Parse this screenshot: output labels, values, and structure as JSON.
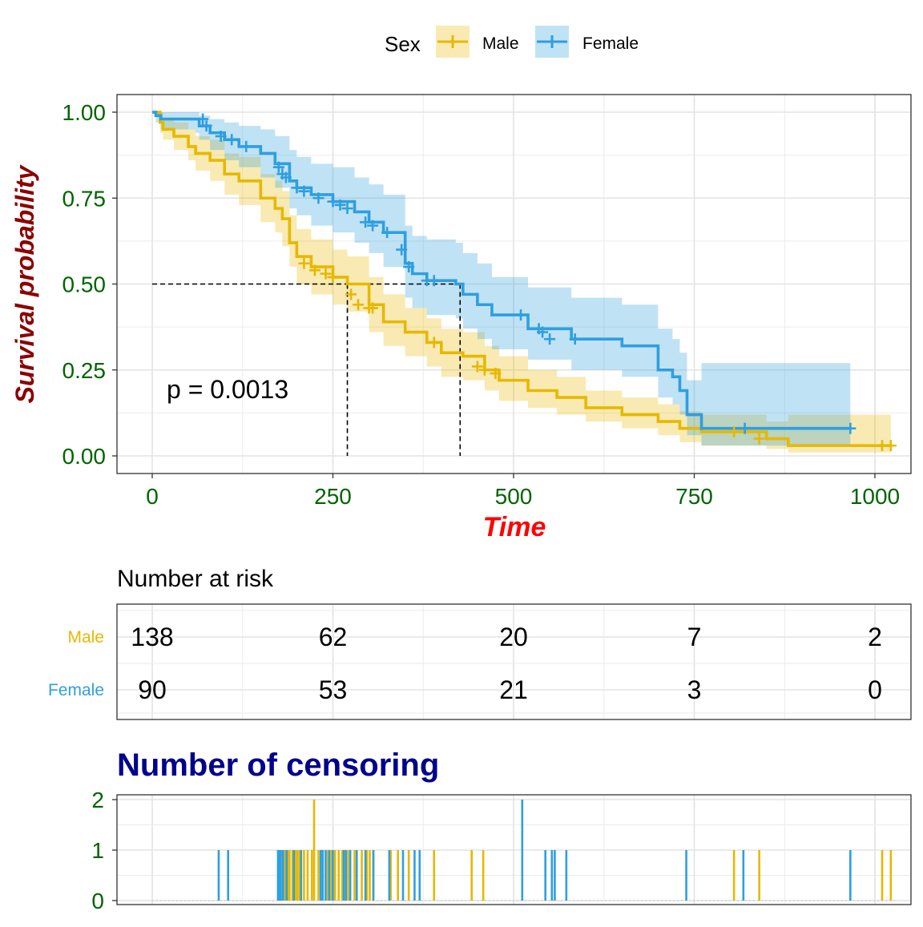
{
  "chart_data": [
    {
      "type": "line",
      "subtype": "kaplan-meier",
      "title": "",
      "xlabel": "Time",
      "ylabel": "Survival probability",
      "xlim": [
        0,
        1030
      ],
      "ylim": [
        0,
        1
      ],
      "x_ticks": [
        "0",
        "250",
        "500",
        "750",
        "1000"
      ],
      "y_ticks": [
        "0.00",
        "0.25",
        "0.50",
        "0.75",
        "1.00"
      ],
      "grid": true,
      "legend": {
        "title": "Sex",
        "position": "top",
        "entries": [
          "Male",
          "Female"
        ]
      },
      "annotation": "p = 0.0013",
      "median_survival": [
        {
          "series": "Male",
          "x": 270,
          "y": 0.5
        },
        {
          "series": "Female",
          "x": 426,
          "y": 0.5
        }
      ],
      "series": [
        {
          "name": "Male",
          "color": "#E7B800",
          "x": [
            0,
            11,
            15,
            30,
            50,
            60,
            80,
            100,
            120,
            150,
            170,
            180,
            190,
            200,
            220,
            250,
            270,
            300,
            320,
            350,
            380,
            400,
            430,
            460,
            480,
            520,
            560,
            600,
            650,
            700,
            730,
            760,
            800,
            850,
            880,
            1022
          ],
          "y": [
            1.0,
            0.97,
            0.95,
            0.93,
            0.9,
            0.88,
            0.86,
            0.82,
            0.8,
            0.75,
            0.72,
            0.69,
            0.62,
            0.58,
            0.55,
            0.52,
            0.5,
            0.44,
            0.39,
            0.36,
            0.33,
            0.3,
            0.29,
            0.25,
            0.22,
            0.19,
            0.17,
            0.14,
            0.12,
            0.1,
            0.08,
            0.07,
            0.07,
            0.05,
            0.03,
            0.03
          ],
          "lower": [
            1.0,
            0.94,
            0.92,
            0.89,
            0.86,
            0.83,
            0.8,
            0.76,
            0.73,
            0.68,
            0.65,
            0.61,
            0.55,
            0.5,
            0.47,
            0.44,
            0.42,
            0.36,
            0.32,
            0.29,
            0.26,
            0.23,
            0.22,
            0.19,
            0.16,
            0.14,
            0.12,
            0.1,
            0.08,
            0.06,
            0.04,
            0.03,
            0.03,
            0.02,
            0.01,
            0.01
          ],
          "upper": [
            1.0,
            1.0,
            0.98,
            0.97,
            0.95,
            0.93,
            0.92,
            0.88,
            0.87,
            0.82,
            0.8,
            0.77,
            0.7,
            0.66,
            0.63,
            0.6,
            0.58,
            0.52,
            0.47,
            0.43,
            0.4,
            0.37,
            0.36,
            0.32,
            0.29,
            0.25,
            0.23,
            0.19,
            0.17,
            0.15,
            0.13,
            0.12,
            0.12,
            0.1,
            0.12,
            0.12
          ],
          "censor_x": [
            210,
            225,
            240,
            250,
            275,
            285,
            300,
            305,
            390,
            450,
            460,
            475,
            805,
            840,
            1010,
            1022
          ],
          "censor_y": [
            0.56,
            0.54,
            0.53,
            0.52,
            0.47,
            0.44,
            0.43,
            0.43,
            0.33,
            0.26,
            0.25,
            0.24,
            0.07,
            0.05,
            0.03,
            0.03
          ]
        },
        {
          "name": "Female",
          "color": "#2E9FDF",
          "x": [
            0,
            5,
            12,
            60,
            65,
            80,
            100,
            120,
            150,
            170,
            190,
            200,
            220,
            250,
            280,
            300,
            320,
            350,
            360,
            380,
            420,
            430,
            450,
            470,
            520,
            580,
            620,
            650,
            700,
            720,
            730,
            740,
            760,
            966
          ],
          "y": [
            1.0,
            0.99,
            0.98,
            0.98,
            0.96,
            0.94,
            0.92,
            0.9,
            0.88,
            0.85,
            0.8,
            0.78,
            0.76,
            0.74,
            0.71,
            0.68,
            0.65,
            0.56,
            0.53,
            0.51,
            0.5,
            0.47,
            0.44,
            0.41,
            0.37,
            0.34,
            0.34,
            0.32,
            0.25,
            0.23,
            0.19,
            0.12,
            0.08,
            0.08
          ],
          "lower": [
            1.0,
            0.97,
            0.95,
            0.94,
            0.92,
            0.89,
            0.86,
            0.84,
            0.81,
            0.78,
            0.72,
            0.7,
            0.67,
            0.65,
            0.62,
            0.59,
            0.55,
            0.46,
            0.43,
            0.41,
            0.4,
            0.37,
            0.34,
            0.31,
            0.28,
            0.25,
            0.25,
            0.23,
            0.17,
            0.15,
            0.12,
            0.06,
            0.03,
            0.03
          ],
          "upper": [
            1.0,
            1.0,
            1.0,
            1.0,
            0.99,
            0.98,
            0.97,
            0.96,
            0.95,
            0.93,
            0.89,
            0.87,
            0.85,
            0.84,
            0.81,
            0.79,
            0.76,
            0.67,
            0.64,
            0.63,
            0.62,
            0.59,
            0.56,
            0.52,
            0.49,
            0.46,
            0.46,
            0.44,
            0.37,
            0.34,
            0.3,
            0.22,
            0.27,
            0.27
          ],
          "censor_x": [
            70,
            75,
            95,
            110,
            130,
            175,
            180,
            185,
            200,
            210,
            230,
            250,
            260,
            270,
            295,
            305,
            325,
            345,
            355,
            380,
            390,
            510,
            535,
            540,
            550,
            585,
            820,
            966
          ],
          "censor_y": [
            0.98,
            0.96,
            0.93,
            0.92,
            0.9,
            0.84,
            0.82,
            0.81,
            0.78,
            0.77,
            0.75,
            0.74,
            0.73,
            0.72,
            0.68,
            0.67,
            0.65,
            0.6,
            0.55,
            0.51,
            0.51,
            0.41,
            0.37,
            0.36,
            0.34,
            0.34,
            0.08,
            0.08
          ]
        }
      ]
    },
    {
      "type": "table",
      "title": "Number at risk",
      "x_ticks": [
        0,
        250,
        500,
        750,
        1000
      ],
      "rows": [
        {
          "name": "Male",
          "color": "#E7B800",
          "values": [
            138,
            62,
            20,
            7,
            2
          ]
        },
        {
          "name": "Female",
          "color": "#2E9FDF",
          "values": [
            90,
            53,
            21,
            3,
            0
          ]
        }
      ]
    },
    {
      "type": "bar",
      "title": "Number of censoring",
      "ylim": [
        0,
        2
      ],
      "y_ticks": [
        "0",
        "1",
        "2"
      ],
      "series": [
        {
          "name": "Male",
          "color": "#E7B800",
          "x": [
            183,
            185,
            188,
            190,
            194,
            198,
            201,
            204,
            210,
            215,
            221,
            224,
            230,
            243,
            248,
            253,
            258,
            263,
            268,
            271,
            280,
            290,
            297,
            301,
            306,
            330,
            340,
            355,
            390,
            442,
            458,
            805,
            840,
            1010,
            1022
          ],
          "values": [
            1,
            1,
            1,
            1,
            1,
            1,
            1,
            1,
            1,
            1,
            1,
            2,
            1,
            1,
            1,
            1,
            1,
            1,
            1,
            1,
            1,
            1,
            1,
            1,
            1,
            1,
            1,
            1,
            1,
            1,
            1,
            1,
            1,
            1,
            1
          ]
        },
        {
          "name": "Female",
          "color": "#2E9FDF",
          "x": [
            92,
            105,
            174,
            176,
            178,
            181,
            186,
            196,
            206,
            233,
            236,
            240,
            245,
            250,
            265,
            268,
            274,
            283,
            295,
            306,
            328,
            347,
            363,
            370,
            512,
            544,
            553,
            557,
            573,
            739,
            818,
            966
          ],
          "values": [
            1,
            1,
            1,
            1,
            1,
            1,
            1,
            1,
            1,
            1,
            1,
            1,
            1,
            1,
            1,
            1,
            1,
            1,
            1,
            1,
            1,
            1,
            1,
            1,
            2,
            1,
            1,
            1,
            1,
            1,
            1,
            1
          ]
        }
      ]
    }
  ]
}
